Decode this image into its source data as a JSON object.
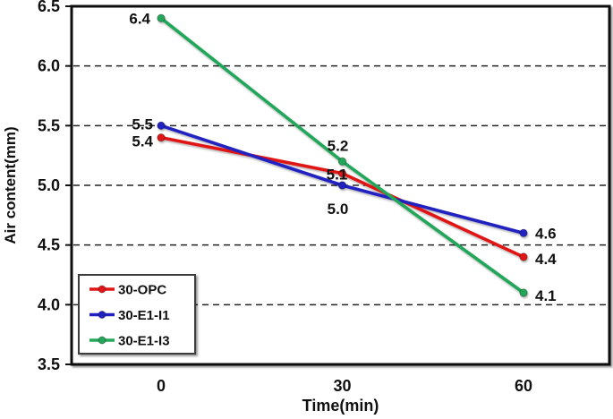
{
  "chart_data": {
    "type": "line",
    "title": "",
    "xlabel": "Time(min)",
    "ylabel": "Air content(mm)",
    "x": [
      0,
      30,
      60
    ],
    "xtick_labels": [
      "0",
      "30",
      "60"
    ],
    "xlim": [
      0,
      60
    ],
    "ylim": [
      3.5,
      6.5
    ],
    "ytick_step": 0.5,
    "grid": "horizontal-dashed",
    "legend_position": "bottom-left",
    "series": [
      {
        "name": "30-OPC",
        "color": "#e01717",
        "marker": "circle",
        "values": [
          5.4,
          5.1,
          4.4
        ],
        "label_offsets": [
          [
            -9,
            10,
            "end"
          ],
          [
            -6,
            7,
            "middle"
          ],
          [
            13,
            8,
            "start"
          ]
        ]
      },
      {
        "name": "30-E1-I1",
        "color": "#2020c0",
        "marker": "circle",
        "values": [
          5.5,
          5.0,
          4.6
        ],
        "label_offsets": [
          [
            -9,
            4,
            "end"
          ],
          [
            -5,
            32,
            "middle"
          ],
          [
            13,
            6,
            "start"
          ]
        ]
      },
      {
        "name": "30-E1-I3",
        "color": "#24a75a",
        "marker": "circle",
        "values": [
          6.4,
          5.2,
          4.1
        ],
        "label_offsets": [
          [
            -12,
            6,
            "end"
          ],
          [
            -5,
            -12,
            "middle"
          ],
          [
            13,
            9,
            "start"
          ]
        ]
      }
    ],
    "colors": {
      "text": "#111111",
      "grid": "#222222",
      "axis": "#111111",
      "background": "#ffffff",
      "legend_border": "#3c3c3c"
    }
  }
}
